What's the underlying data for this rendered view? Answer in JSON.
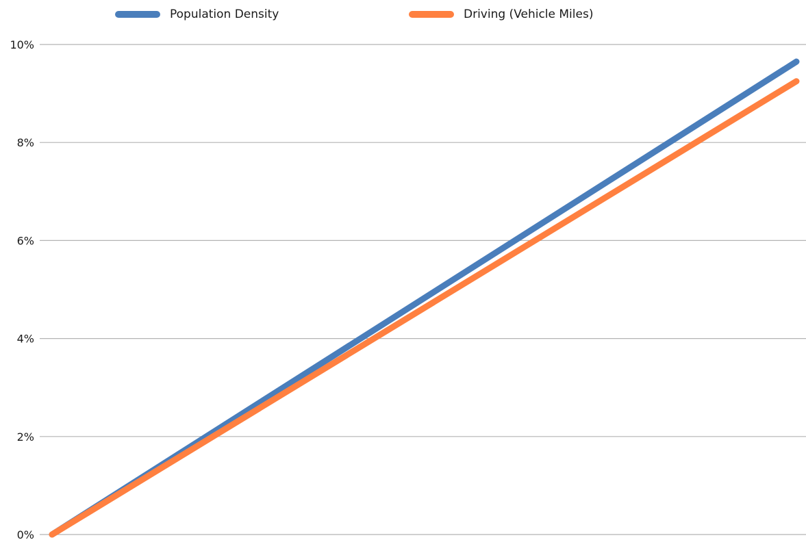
{
  "chart_data": {
    "type": "line",
    "title": "",
    "xlabel": "",
    "ylabel": "",
    "x": [
      0,
      1
    ],
    "ylim": [
      0,
      10
    ],
    "yticks": [
      0,
      2,
      4,
      6,
      8,
      10
    ],
    "ytick_labels": [
      "0%",
      "2%",
      "4%",
      "6%",
      "8%",
      "10%"
    ],
    "grid": "horizontal",
    "legend_position": "top",
    "series": [
      {
        "name": "Population Density",
        "color": "#4a7ebb",
        "values": [
          0,
          9.65
        ]
      },
      {
        "name": "Driving (Vehicle Miles)",
        "color": "#ff8040",
        "values": [
          0,
          9.25
        ]
      }
    ]
  }
}
